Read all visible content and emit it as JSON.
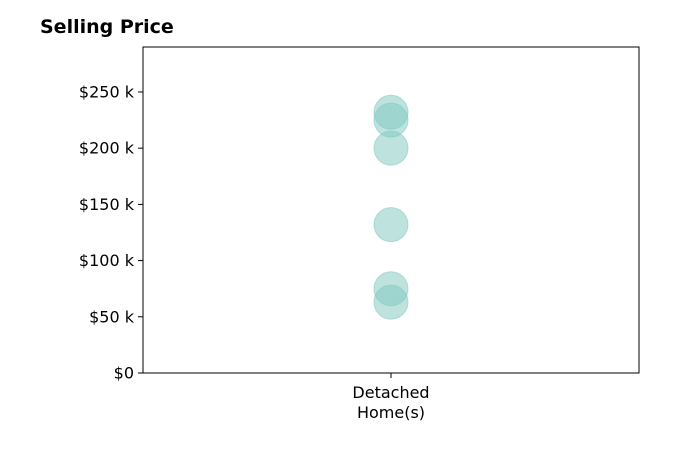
{
  "chart_data": {
    "type": "scatter",
    "title": "Selling Price",
    "categories": [
      "Detached\nHome(s)"
    ],
    "series": [
      {
        "category": "Detached\nHome(s)",
        "values": [
          232000,
          225000,
          200000,
          132000,
          75000,
          63000
        ]
      }
    ],
    "ylim": [
      0,
      290000
    ],
    "yticks": [
      0,
      50000,
      100000,
      150000,
      200000,
      250000
    ],
    "ytick_labels": [
      "$0",
      "$50 k",
      "$100 k",
      "$150 k",
      "$200 k",
      "$250 k"
    ],
    "xlabel": "",
    "ylabel": "",
    "grid": false,
    "marker_color": "#7ec8c0"
  }
}
